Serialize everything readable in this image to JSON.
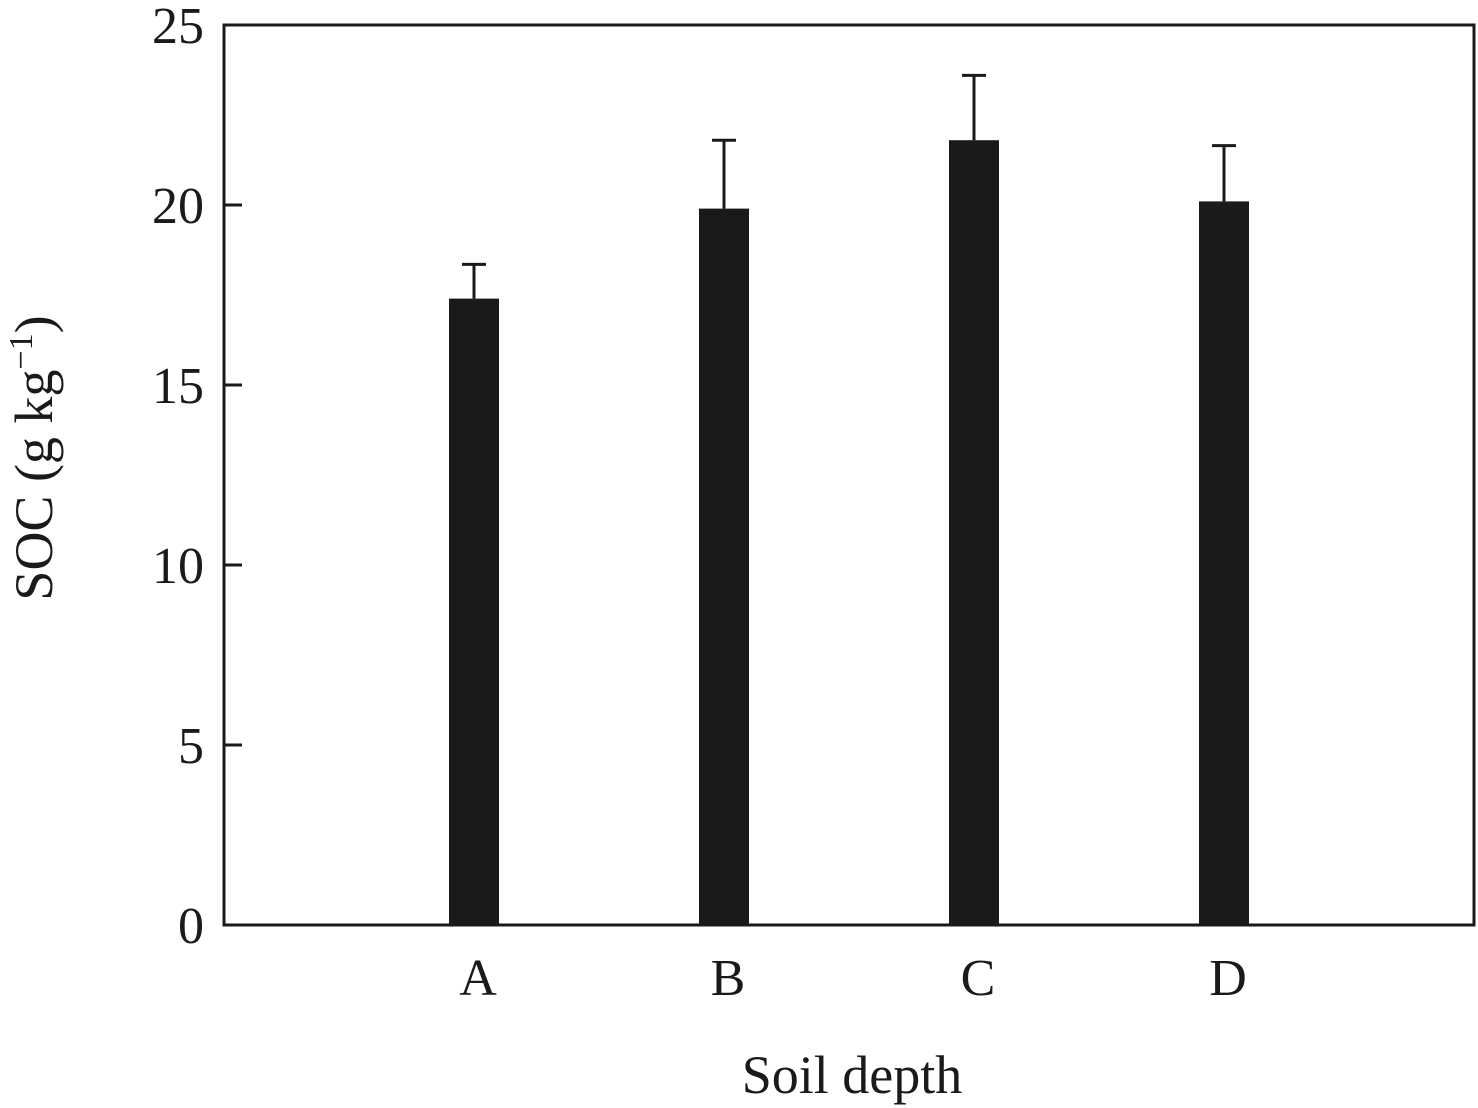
{
  "chart_data": {
    "type": "bar",
    "categories": [
      "A",
      "B",
      "C",
      "D"
    ],
    "values": [
      17.4,
      19.9,
      21.8,
      20.1
    ],
    "errors": [
      0.95,
      1.9,
      1.8,
      1.55
    ],
    "xlabel": "Soil depth",
    "ylabel": {
      "main": "SOC (g kg",
      "superscript": "−1",
      "close": ")"
    },
    "ylim": [
      0,
      25
    ],
    "yticks": [
      "0",
      "5",
      "10",
      "15",
      "20",
      "25"
    ],
    "bar_color": "#1a1a1a",
    "grid": false,
    "legend": "none"
  }
}
